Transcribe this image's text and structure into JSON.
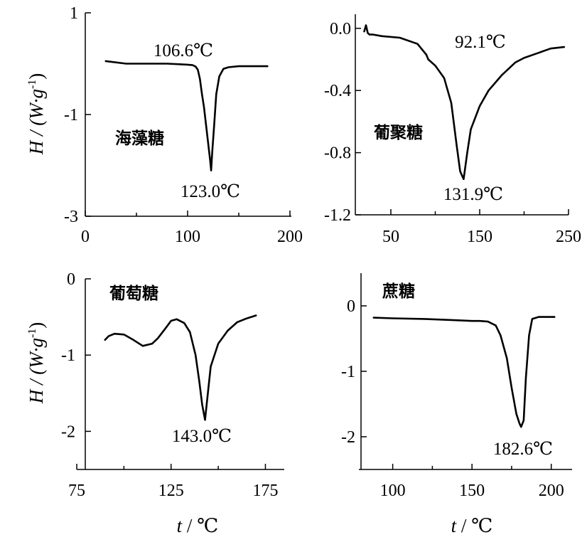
{
  "chart_data": [
    {
      "type": "line",
      "sample": "海藻糖",
      "xlim": [
        0,
        200
      ],
      "ylim": [
        -3,
        1
      ],
      "xticks": [
        0,
        100,
        200
      ],
      "yticks": [
        1,
        -1,
        -3
      ],
      "xtick_labels": [
        "0",
        "100",
        "200"
      ],
      "ytick_labels": [
        "1",
        "-1",
        "-3"
      ],
      "x": [
        20,
        40,
        60,
        80,
        100,
        105,
        108,
        110,
        112,
        114,
        116,
        118,
        120,
        122,
        123,
        124,
        126,
        128,
        131,
        135,
        140,
        150,
        160,
        170,
        178
      ],
      "y": [
        0.05,
        0,
        0,
        0,
        -0.02,
        -0.03,
        -0.06,
        -0.12,
        -0.3,
        -0.6,
        -0.85,
        -1.2,
        -1.55,
        -1.9,
        -2.1,
        -1.75,
        -1.2,
        -0.6,
        -0.25,
        -0.1,
        -0.07,
        -0.05,
        -0.05,
        -0.05,
        -0.05
      ],
      "annotations": [
        {
          "text": "106.6℃",
          "x": 106.6
        },
        {
          "text": "123.0℃",
          "x": 123.0
        }
      ]
    },
    {
      "type": "line",
      "sample": "葡聚糖",
      "xlim": [
        10,
        250
      ],
      "ylim": [
        -1.2,
        0.1
      ],
      "xticks": [
        50,
        150,
        250
      ],
      "yticks": [
        0.0,
        -0.4,
        -0.8,
        -1.2
      ],
      "xtick_labels": [
        "50",
        "150",
        "250"
      ],
      "ytick_labels": [
        "0.0",
        "-0.4",
        "-0.8",
        "-1.2"
      ],
      "x": [
        20,
        22,
        24,
        26,
        30,
        40,
        60,
        80,
        90,
        92.1,
        100,
        110,
        118,
        124,
        128,
        131.9,
        136,
        140,
        150,
        160,
        175,
        190,
        200,
        215,
        230,
        245
      ],
      "y": [
        -0.02,
        0.02,
        -0.03,
        -0.04,
        -0.04,
        -0.05,
        -0.06,
        -0.1,
        -0.17,
        -0.2,
        -0.24,
        -0.32,
        -0.48,
        -0.75,
        -0.92,
        -0.97,
        -0.8,
        -0.65,
        -0.5,
        -0.4,
        -0.3,
        -0.22,
        -0.19,
        -0.16,
        -0.13,
        -0.12
      ],
      "annotations": [
        {
          "text": "92.1℃",
          "x": 92.1
        },
        {
          "text": "131.9℃",
          "x": 131.9
        }
      ]
    },
    {
      "type": "line",
      "sample": "葡萄糖",
      "xlim": [
        75,
        185
      ],
      "ylim": [
        -2.5,
        0
      ],
      "xticks": [
        75,
        125,
        175
      ],
      "yticks": [
        0,
        -1,
        -2
      ],
      "xtick_labels": [
        "75",
        "125",
        "175"
      ],
      "ytick_labels": [
        "0",
        "-1",
        "-2"
      ],
      "x": [
        90,
        92,
        95,
        100,
        105,
        110,
        115,
        118,
        122,
        125,
        128,
        132,
        135,
        138,
        140,
        141.5,
        143,
        144.5,
        146,
        150,
        155,
        160,
        165,
        170
      ],
      "y": [
        -0.8,
        -0.75,
        -0.72,
        -0.73,
        -0.8,
        -0.88,
        -0.85,
        -0.78,
        -0.65,
        -0.55,
        -0.53,
        -0.58,
        -0.7,
        -1.0,
        -1.35,
        -1.65,
        -1.85,
        -1.5,
        -1.15,
        -0.85,
        -0.68,
        -0.57,
        -0.52,
        -0.48
      ],
      "annotations": [
        {
          "text": "143.0℃",
          "x": 143.0
        }
      ]
    },
    {
      "type": "line",
      "sample": "蔗糖",
      "xlim": [
        80,
        210
      ],
      "ylim": [
        -2.5,
        0.5
      ],
      "xticks": [
        100,
        150,
        200
      ],
      "yticks": [
        0,
        -1,
        -2
      ],
      "xtick_labels": [
        "100",
        "150",
        "200"
      ],
      "ytick_labels": [
        "0",
        "-1",
        "-2"
      ],
      "x": [
        88,
        100,
        120,
        140,
        150,
        155,
        160,
        165,
        168,
        172,
        175,
        178,
        180,
        181,
        182.6,
        184,
        186,
        188,
        192,
        198,
        202
      ],
      "y": [
        -0.18,
        -0.19,
        -0.2,
        -0.22,
        -0.23,
        -0.23,
        -0.24,
        -0.3,
        -0.45,
        -0.8,
        -1.25,
        -1.65,
        -1.8,
        -1.85,
        -1.75,
        -1.1,
        -0.45,
        -0.2,
        -0.17,
        -0.17,
        -0.17
      ],
      "annotations": [
        {
          "text": "182.6℃",
          "x": 182.6
        }
      ]
    }
  ],
  "labels": {
    "ylabel_main": "H / (W·g",
    "ylabel_sup": "-1",
    "ylabel_close": ")",
    "xlabel_var": "t",
    "xlabel_sep": " / ",
    "xlabel_unit": "℃"
  }
}
